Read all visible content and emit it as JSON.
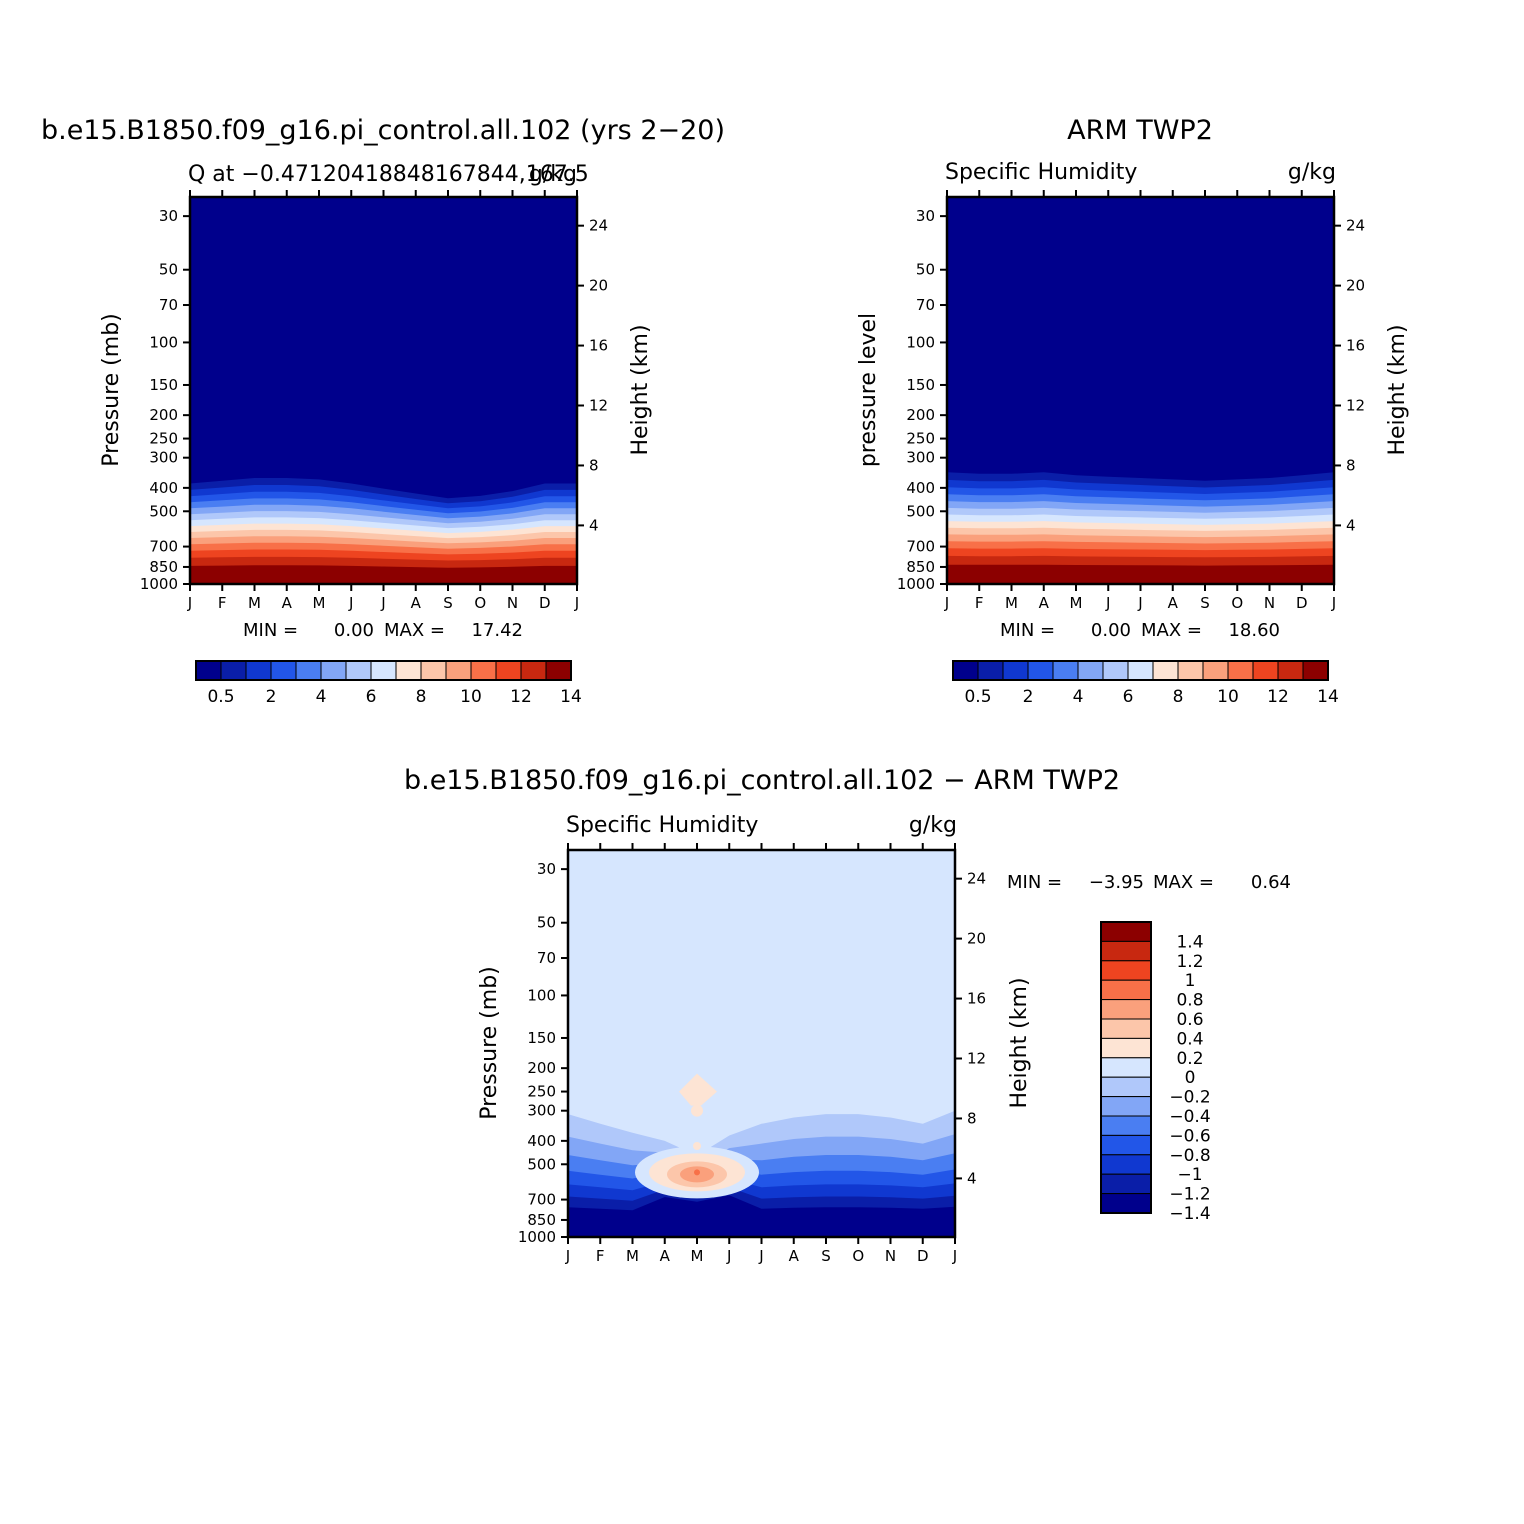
{
  "chart_data": [
    {
      "type": "heatmap",
      "title": "b.e15.B1850.f09_g16.pi_control.all.102 (yrs 2−20)",
      "subtitle_left": "Q at −0.47120418848167844,167.5",
      "subtitle_right": "g/kg",
      "ylabel": "Pressure (mb)",
      "ylabel_right": "Height (km)",
      "x_ticks": [
        "J",
        "F",
        "M",
        "A",
        "M",
        "J",
        "J",
        "A",
        "S",
        "O",
        "N",
        "D",
        "J"
      ],
      "y_ticks": [
        "30",
        "50",
        "70",
        "100",
        "150",
        "200",
        "250",
        "300",
        "400",
        "500",
        "700",
        "850",
        "1000"
      ],
      "y_ticks_right": [
        "24",
        "20",
        "16",
        "12",
        "8",
        "4"
      ],
      "ylim": [
        1000,
        25
      ],
      "min_label": "MIN =",
      "min_value": "0.00",
      "max_label": "MAX =",
      "max_value": "17.42",
      "colorbar_labels": [
        "0.5",
        "2",
        "4",
        "6",
        "8",
        "10",
        "12",
        "14"
      ],
      "moist_top_pressure_by_month": [
        360,
        350,
        340,
        340,
        345,
        360,
        380,
        400,
        420,
        410,
        390,
        360,
        360
      ]
    },
    {
      "type": "heatmap",
      "title": "ARM TWP2",
      "subtitle_left": "Specific Humidity",
      "subtitle_right": "g/kg",
      "ylabel": "pressure level",
      "ylabel_right": "Height (km)",
      "x_ticks": [
        "J",
        "F",
        "M",
        "A",
        "M",
        "J",
        "J",
        "A",
        "S",
        "O",
        "N",
        "D",
        "J"
      ],
      "y_ticks": [
        "30",
        "50",
        "70",
        "100",
        "150",
        "200",
        "250",
        "300",
        "400",
        "500",
        "700",
        "850",
        "1000"
      ],
      "y_ticks_right": [
        "24",
        "20",
        "16",
        "12",
        "8",
        "4"
      ],
      "ylim": [
        1000,
        25
      ],
      "min_label": "MIN =",
      "min_value": "0.00",
      "max_label": "MAX =",
      "max_value": "18.60",
      "colorbar_labels": [
        "0.5",
        "2",
        "4",
        "6",
        "8",
        "10",
        "12",
        "14"
      ],
      "moist_top_pressure_by_month": [
        320,
        325,
        325,
        320,
        330,
        335,
        340,
        345,
        350,
        345,
        340,
        330,
        320
      ]
    },
    {
      "type": "heatmap",
      "title": "b.e15.B1850.f09_g16.pi_control.all.102 − ARM TWP2",
      "subtitle_left": "Specific Humidity",
      "subtitle_right": "g/kg",
      "ylabel": "Pressure (mb)",
      "ylabel_right": "Height (km)",
      "x_ticks": [
        "J",
        "F",
        "M",
        "A",
        "M",
        "J",
        "J",
        "A",
        "S",
        "O",
        "N",
        "D",
        "J"
      ],
      "y_ticks": [
        "30",
        "50",
        "70",
        "100",
        "150",
        "200",
        "250",
        "300",
        "400",
        "500",
        "700",
        "850",
        "1000"
      ],
      "y_ticks_right": [
        "24",
        "20",
        "16",
        "12",
        "8",
        "4"
      ],
      "ylim": [
        1000,
        25
      ],
      "min_label": "MIN =",
      "min_value": "−3.95",
      "max_label": "MAX =",
      "max_value": "0.64",
      "colorbar_labels": [
        "1.4",
        "1.2",
        "1",
        "0.8",
        "0.6",
        "0.4",
        "0.2",
        "0",
        "−0.2",
        "−0.4",
        "−0.6",
        "−0.8",
        "−1",
        "−1.2",
        "−1.4"
      ],
      "dry_top_pressure_by_month": [
        310,
        340,
        370,
        400,
        460,
        380,
        340,
        320,
        310,
        310,
        320,
        340,
        300
      ],
      "positive_anomaly_center": {
        "month": 4,
        "pressure": 540
      }
    }
  ],
  "colors": {
    "model_obs_levels": [
      "#00008c",
      "#0a1ea8",
      "#1038d0",
      "#2256e8",
      "#4a7ef2",
      "#82a6f6",
      "#b0c8fa",
      "#d6e6fe",
      "#fde4d4",
      "#fcc6aa",
      "#faa07c",
      "#f87048",
      "#ee4420",
      "#c82810",
      "#8c0000"
    ],
    "diff_levels": [
      "#00008c",
      "#0a1ea8",
      "#1038d0",
      "#2256e8",
      "#4a7ef2",
      "#82a6f6",
      "#b0c8fa",
      "#d6e6fe",
      "#fde4d4",
      "#fcc6aa",
      "#faa07c",
      "#f87048",
      "#ee4420",
      "#c82810",
      "#8c0000"
    ]
  }
}
